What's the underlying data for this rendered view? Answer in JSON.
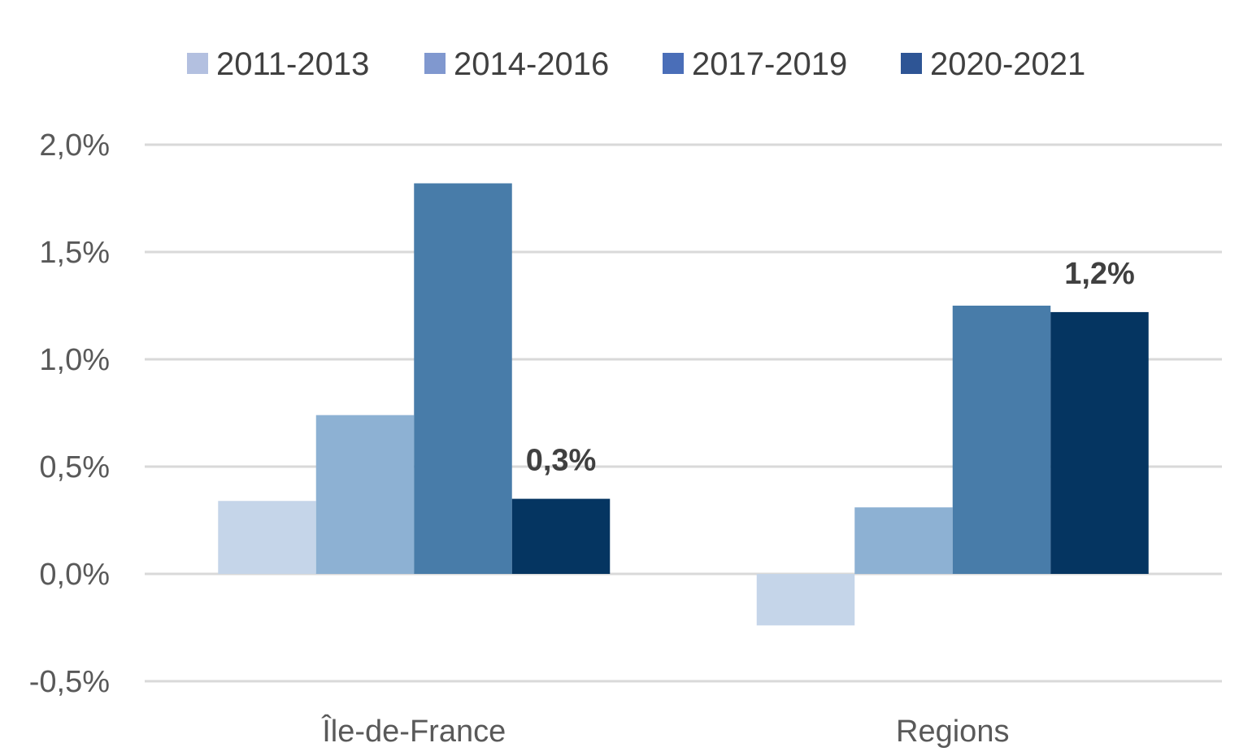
{
  "chart_data": {
    "type": "bar",
    "categories": [
      "Île-de-France",
      "Regions"
    ],
    "series": [
      {
        "name": "2011-2013",
        "values": [
          0.34,
          -0.24
        ],
        "bar_color": "#c5d5e9",
        "legend_color": "#b3c0e0"
      },
      {
        "name": "2014-2016",
        "values": [
          0.74,
          0.31
        ],
        "bar_color": "#8db1d3",
        "legend_color": "#8098cf"
      },
      {
        "name": "2017-2019",
        "values": [
          1.82,
          1.25
        ],
        "bar_color": "#487ca9",
        "legend_color": "#4a6eb8"
      },
      {
        "name": "2020-2021",
        "values": [
          0.35,
          1.22
        ],
        "bar_color": "#053561",
        "legend_color": "#2e5595"
      }
    ],
    "data_labels": [
      {
        "series_index": 3,
        "category_index": 0,
        "text": "0,3%"
      },
      {
        "series_index": 3,
        "category_index": 1,
        "text": "1,2%"
      }
    ],
    "y_ticks": [
      {
        "value": -0.5,
        "label": "-0,5%"
      },
      {
        "value": 0.0,
        "label": "0,0%"
      },
      {
        "value": 0.5,
        "label": "0,5%"
      },
      {
        "value": 1.0,
        "label": "1,0%"
      },
      {
        "value": 1.5,
        "label": "1,5%"
      },
      {
        "value": 2.0,
        "label": "2,0%"
      }
    ],
    "ylim": [
      -0.5,
      2.0
    ],
    "title": "",
    "xlabel": "",
    "ylabel": "",
    "grid": true,
    "legend_position": "top",
    "gridline_color": "#d9d9d9"
  }
}
